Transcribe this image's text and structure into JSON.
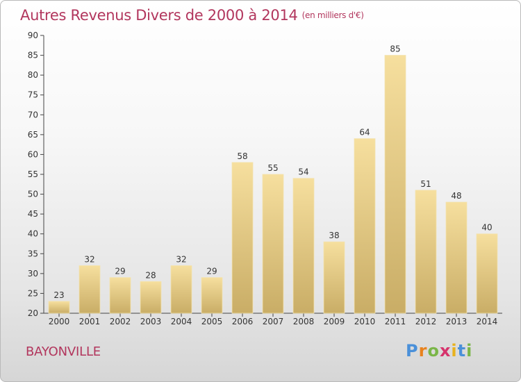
{
  "header": {
    "title": "Autres Revenus Divers de 2000 à 2014",
    "unit": "(en milliers d'€)"
  },
  "footer": {
    "city": "BAYONVILLE",
    "logo_letters": [
      "P",
      "r",
      "o",
      "x",
      "i",
      "t",
      "i"
    ],
    "logo_colors": [
      "#4a90d9",
      "#e8821e",
      "#7ab648",
      "#d6336c",
      "#e8b21e",
      "#4a90d9",
      "#7ab648"
    ]
  },
  "chart_data": {
    "type": "bar",
    "categories": [
      "2000",
      "2001",
      "2002",
      "2003",
      "2004",
      "2005",
      "2006",
      "2007",
      "2008",
      "2009",
      "2010",
      "2011",
      "2012",
      "2013",
      "2014"
    ],
    "values": [
      23,
      32,
      29,
      28,
      32,
      29,
      58,
      55,
      54,
      38,
      64,
      85,
      51,
      48,
      40
    ],
    "title": "Autres Revenus Divers de 2000 à 2014",
    "xlabel": "",
    "ylabel": "",
    "ylim": [
      20,
      90
    ],
    "yticks": [
      20,
      25,
      30,
      35,
      40,
      45,
      50,
      55,
      60,
      65,
      70,
      75,
      80,
      85,
      90
    ],
    "grid": false,
    "bar_color": "#e3c97e",
    "data_labels": true
  }
}
